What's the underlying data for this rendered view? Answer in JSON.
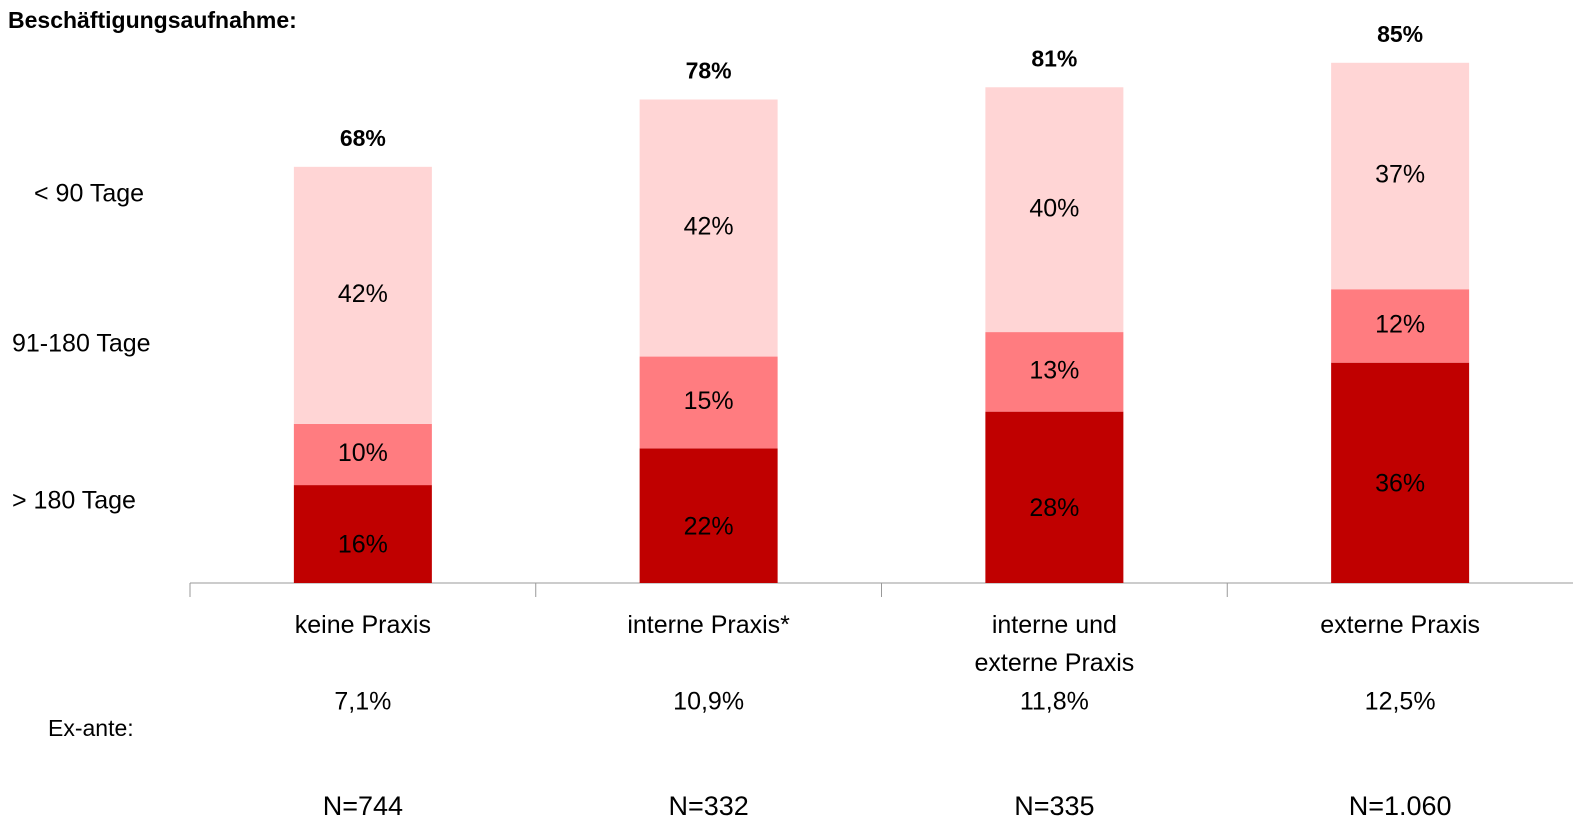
{
  "chart_data": {
    "type": "stacked_bar",
    "title": "Beschäftigungsaufnahme:",
    "categories": [
      "keine Praxis",
      "interne Praxis*",
      "interne und\nexterne Praxis",
      "externe Praxis"
    ],
    "series": [
      {
        "name": "> 180 Tage",
        "color": "#c00000",
        "values": [
          16,
          22,
          28,
          36
        ],
        "value_labels": [
          "16%",
          "22%",
          "28%",
          "36%"
        ]
      },
      {
        "name": "91-180 Tage",
        "color": "#ff7c80",
        "values": [
          10,
          15,
          13,
          12
        ],
        "value_labels": [
          "10%",
          "15%",
          "13%",
          "12%"
        ]
      },
      {
        "name": "< 90 Tage",
        "color": "#ffd5d5",
        "values": [
          42,
          42,
          40,
          37
        ],
        "value_labels": [
          "42%",
          "42%",
          "40%",
          "37%"
        ]
      }
    ],
    "totals": {
      "values": [
        68,
        78,
        81,
        85
      ],
      "value_labels": [
        "68%",
        "78%",
        "81%",
        "85%"
      ]
    },
    "ex_ante": {
      "label": "Ex-ante:",
      "values": [
        7.1,
        10.9,
        11.8,
        12.5
      ],
      "value_labels": [
        "7,1%",
        "10,9%",
        "11,8%",
        "12,5%"
      ]
    },
    "n": {
      "values": [
        744,
        332,
        335,
        1060
      ],
      "value_labels": [
        "N=744",
        "N=332",
        "N=335",
        "N=1.060"
      ]
    }
  }
}
